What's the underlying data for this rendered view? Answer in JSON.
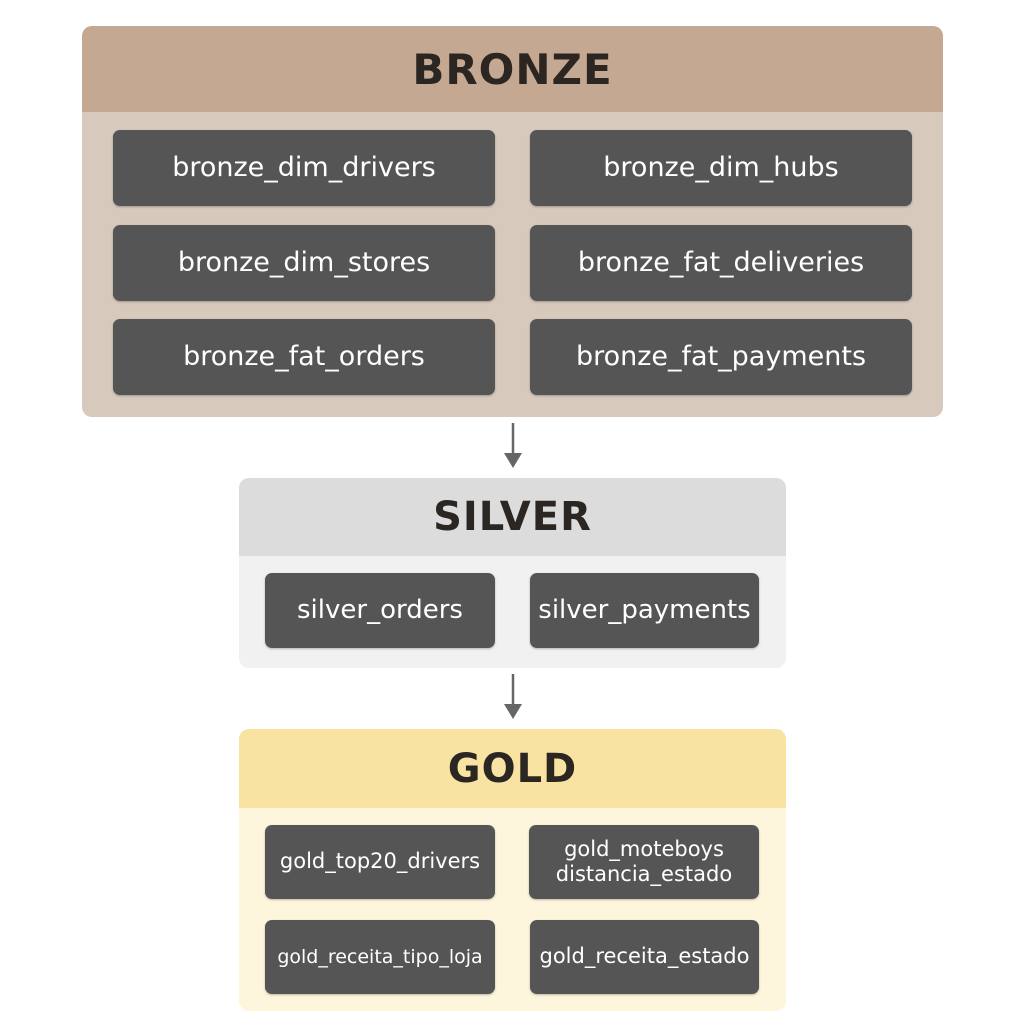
{
  "colors": {
    "bronze_header": "#c4a892",
    "bronze_body": "#d7c9bc",
    "silver_header": "#dcdcdc",
    "silver_body": "#f1f1f1",
    "gold_header": "#f8e3a3",
    "gold_body": "#fdf6dd",
    "table_box": "#555555",
    "arrow": "#666666"
  },
  "bronze": {
    "title": "BRONZE",
    "tables": [
      "bronze_dim_drivers",
      "bronze_dim_hubs",
      "bronze_dim_stores",
      "bronze_fat_deliveries",
      "bronze_fat_orders",
      "bronze_fat_payments"
    ]
  },
  "silver": {
    "title": "SILVER",
    "tables": [
      "silver_orders",
      "silver_payments"
    ]
  },
  "gold": {
    "title": "GOLD",
    "tables": [
      {
        "line1": "gold_top20_drivers",
        "line2": ""
      },
      {
        "line1": "gold_moteboys",
        "line2": "distancia_estado"
      },
      {
        "line1": "gold_receita_tipo_loja",
        "line2": ""
      },
      {
        "line1": "gold_receita_estado",
        "line2": ""
      }
    ]
  },
  "arrows": [
    {
      "from": "bronze",
      "to": "silver",
      "icon": "arrow-down-icon"
    },
    {
      "from": "silver",
      "to": "gold",
      "icon": "arrow-down-icon"
    }
  ]
}
